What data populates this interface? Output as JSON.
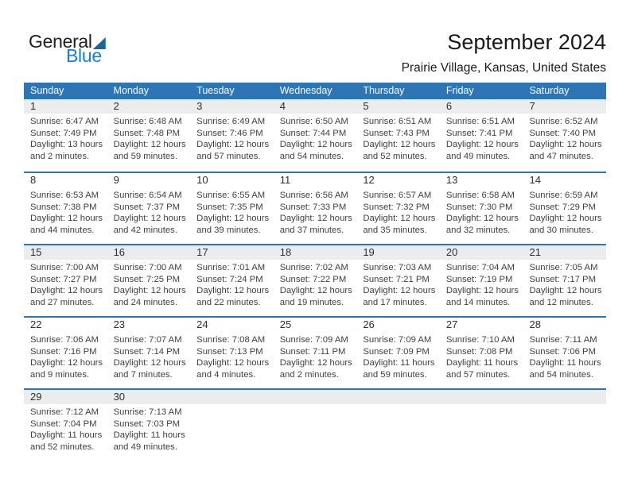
{
  "logo": {
    "general_text": "General",
    "blue_text": "Blue"
  },
  "header": {
    "title": "September 2024",
    "subtitle": "Prairie Village, Kansas, United States"
  },
  "colors": {
    "header_bar": "#2E75B6",
    "week_divider": "#2E75B6",
    "shaded_band": "#ECECEC",
    "brand_blue_text": "#1581D3",
    "brand_triangle": "#1565A7"
  },
  "weekdays": [
    "Sunday",
    "Monday",
    "Tuesday",
    "Wednesday",
    "Thursday",
    "Friday",
    "Saturday"
  ],
  "weeks": [
    {
      "shaded": true,
      "days": [
        {
          "num": "1",
          "sunrise": "Sunrise: 6:47 AM",
          "sunset": "Sunset: 7:49 PM",
          "daylight1": "Daylight: 13 hours",
          "daylight2": "and 2 minutes."
        },
        {
          "num": "2",
          "sunrise": "Sunrise: 6:48 AM",
          "sunset": "Sunset: 7:48 PM",
          "daylight1": "Daylight: 12 hours",
          "daylight2": "and 59 minutes."
        },
        {
          "num": "3",
          "sunrise": "Sunrise: 6:49 AM",
          "sunset": "Sunset: 7:46 PM",
          "daylight1": "Daylight: 12 hours",
          "daylight2": "and 57 minutes."
        },
        {
          "num": "4",
          "sunrise": "Sunrise: 6:50 AM",
          "sunset": "Sunset: 7:44 PM",
          "daylight1": "Daylight: 12 hours",
          "daylight2": "and 54 minutes."
        },
        {
          "num": "5",
          "sunrise": "Sunrise: 6:51 AM",
          "sunset": "Sunset: 7:43 PM",
          "daylight1": "Daylight: 12 hours",
          "daylight2": "and 52 minutes."
        },
        {
          "num": "6",
          "sunrise": "Sunrise: 6:51 AM",
          "sunset": "Sunset: 7:41 PM",
          "daylight1": "Daylight: 12 hours",
          "daylight2": "and 49 minutes."
        },
        {
          "num": "7",
          "sunrise": "Sunrise: 6:52 AM",
          "sunset": "Sunset: 7:40 PM",
          "daylight1": "Daylight: 12 hours",
          "daylight2": "and 47 minutes."
        }
      ]
    },
    {
      "shaded": false,
      "days": [
        {
          "num": "8",
          "sunrise": "Sunrise: 6:53 AM",
          "sunset": "Sunset: 7:38 PM",
          "daylight1": "Daylight: 12 hours",
          "daylight2": "and 44 minutes."
        },
        {
          "num": "9",
          "sunrise": "Sunrise: 6:54 AM",
          "sunset": "Sunset: 7:37 PM",
          "daylight1": "Daylight: 12 hours",
          "daylight2": "and 42 minutes."
        },
        {
          "num": "10",
          "sunrise": "Sunrise: 6:55 AM",
          "sunset": "Sunset: 7:35 PM",
          "daylight1": "Daylight: 12 hours",
          "daylight2": "and 39 minutes."
        },
        {
          "num": "11",
          "sunrise": "Sunrise: 6:56 AM",
          "sunset": "Sunset: 7:33 PM",
          "daylight1": "Daylight: 12 hours",
          "daylight2": "and 37 minutes."
        },
        {
          "num": "12",
          "sunrise": "Sunrise: 6:57 AM",
          "sunset": "Sunset: 7:32 PM",
          "daylight1": "Daylight: 12 hours",
          "daylight2": "and 35 minutes."
        },
        {
          "num": "13",
          "sunrise": "Sunrise: 6:58 AM",
          "sunset": "Sunset: 7:30 PM",
          "daylight1": "Daylight: 12 hours",
          "daylight2": "and 32 minutes."
        },
        {
          "num": "14",
          "sunrise": "Sunrise: 6:59 AM",
          "sunset": "Sunset: 7:29 PM",
          "daylight1": "Daylight: 12 hours",
          "daylight2": "and 30 minutes."
        }
      ]
    },
    {
      "shaded": true,
      "days": [
        {
          "num": "15",
          "sunrise": "Sunrise: 7:00 AM",
          "sunset": "Sunset: 7:27 PM",
          "daylight1": "Daylight: 12 hours",
          "daylight2": "and 27 minutes."
        },
        {
          "num": "16",
          "sunrise": "Sunrise: 7:00 AM",
          "sunset": "Sunset: 7:25 PM",
          "daylight1": "Daylight: 12 hours",
          "daylight2": "and 24 minutes."
        },
        {
          "num": "17",
          "sunrise": "Sunrise: 7:01 AM",
          "sunset": "Sunset: 7:24 PM",
          "daylight1": "Daylight: 12 hours",
          "daylight2": "and 22 minutes."
        },
        {
          "num": "18",
          "sunrise": "Sunrise: 7:02 AM",
          "sunset": "Sunset: 7:22 PM",
          "daylight1": "Daylight: 12 hours",
          "daylight2": "and 19 minutes."
        },
        {
          "num": "19",
          "sunrise": "Sunrise: 7:03 AM",
          "sunset": "Sunset: 7:21 PM",
          "daylight1": "Daylight: 12 hours",
          "daylight2": "and 17 minutes."
        },
        {
          "num": "20",
          "sunrise": "Sunrise: 7:04 AM",
          "sunset": "Sunset: 7:19 PM",
          "daylight1": "Daylight: 12 hours",
          "daylight2": "and 14 minutes."
        },
        {
          "num": "21",
          "sunrise": "Sunrise: 7:05 AM",
          "sunset": "Sunset: 7:17 PM",
          "daylight1": "Daylight: 12 hours",
          "daylight2": "and 12 minutes."
        }
      ]
    },
    {
      "shaded": false,
      "days": [
        {
          "num": "22",
          "sunrise": "Sunrise: 7:06 AM",
          "sunset": "Sunset: 7:16 PM",
          "daylight1": "Daylight: 12 hours",
          "daylight2": "and 9 minutes."
        },
        {
          "num": "23",
          "sunrise": "Sunrise: 7:07 AM",
          "sunset": "Sunset: 7:14 PM",
          "daylight1": "Daylight: 12 hours",
          "daylight2": "and 7 minutes."
        },
        {
          "num": "24",
          "sunrise": "Sunrise: 7:08 AM",
          "sunset": "Sunset: 7:13 PM",
          "daylight1": "Daylight: 12 hours",
          "daylight2": "and 4 minutes."
        },
        {
          "num": "25",
          "sunrise": "Sunrise: 7:09 AM",
          "sunset": "Sunset: 7:11 PM",
          "daylight1": "Daylight: 12 hours",
          "daylight2": "and 2 minutes."
        },
        {
          "num": "26",
          "sunrise": "Sunrise: 7:09 AM",
          "sunset": "Sunset: 7:09 PM",
          "daylight1": "Daylight: 11 hours",
          "daylight2": "and 59 minutes."
        },
        {
          "num": "27",
          "sunrise": "Sunrise: 7:10 AM",
          "sunset": "Sunset: 7:08 PM",
          "daylight1": "Daylight: 11 hours",
          "daylight2": "and 57 minutes."
        },
        {
          "num": "28",
          "sunrise": "Sunrise: 7:11 AM",
          "sunset": "Sunset: 7:06 PM",
          "daylight1": "Daylight: 11 hours",
          "daylight2": "and 54 minutes."
        }
      ]
    },
    {
      "shaded": true,
      "days": [
        {
          "num": "29",
          "sunrise": "Sunrise: 7:12 AM",
          "sunset": "Sunset: 7:04 PM",
          "daylight1": "Daylight: 11 hours",
          "daylight2": "and 52 minutes."
        },
        {
          "num": "30",
          "sunrise": "Sunrise: 7:13 AM",
          "sunset": "Sunset: 7:03 PM",
          "daylight1": "Daylight: 11 hours",
          "daylight2": "and 49 minutes."
        },
        null,
        null,
        null,
        null,
        null
      ]
    }
  ]
}
